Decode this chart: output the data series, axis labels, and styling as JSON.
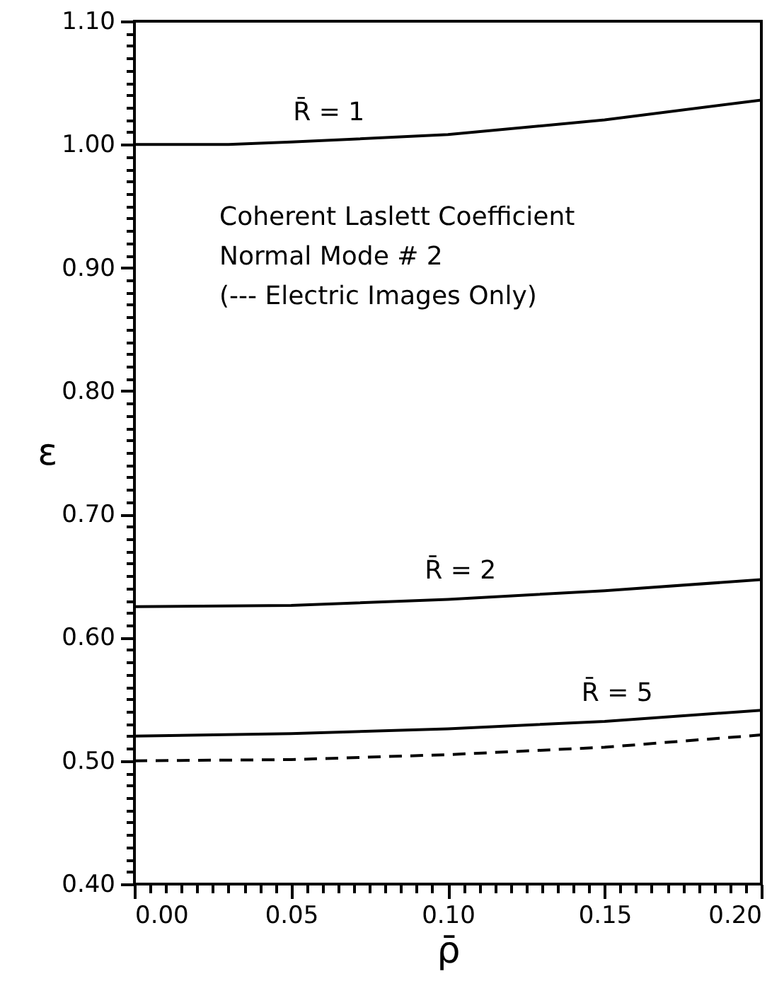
{
  "chart_data": {
    "type": "line",
    "xlabel": "ρ̄",
    "ylabel": "ε",
    "series": [
      {
        "color": "#000000",
        "line_style": "solid",
        "x": [
          0,
          0.03,
          0.05,
          0.1,
          0.15,
          0.2
        ],
        "values": [
          1.0,
          1.0,
          1.002,
          1.008,
          1.02,
          1.036
        ],
        "name": "R̄ = 1"
      },
      {
        "color": "#000000",
        "line_style": "solid",
        "x": [
          0,
          0.05,
          0.1,
          0.15,
          0.2
        ],
        "values": [
          0.625,
          0.626,
          0.631,
          0.638,
          0.647
        ],
        "name": "R̄ = 2"
      },
      {
        "color": "#000000",
        "line_style": "solid",
        "x": [
          0,
          0.05,
          0.1,
          0.15,
          0.2
        ],
        "values": [
          0.52,
          0.522,
          0.526,
          0.532,
          0.541
        ],
        "name": "R̄ = 5"
      },
      {
        "color": "#000000",
        "line_style": "dashed",
        "x": [
          0,
          0.05,
          0.1,
          0.15,
          0.2
        ],
        "values": [
          0.5,
          0.501,
          0.505,
          0.511,
          0.521
        ]
      }
    ],
    "annotations": [
      "Coherent Laslett Coefficient\nNormal Mode # 2\n(--- Electric Images Only)"
    ],
    "xlim": [
      0,
      0.2
    ],
    "ylim": [
      0.4,
      1.1
    ],
    "xticks": [
      {
        "value": 0,
        "label": "0.00"
      },
      {
        "value": 0.005,
        "label": null
      },
      {
        "value": 0.01,
        "label": null
      },
      {
        "value": 0.015,
        "label": null
      },
      {
        "value": 0.02,
        "label": null
      },
      {
        "value": 0.025,
        "label": null
      },
      {
        "value": 0.03,
        "label": null
      },
      {
        "value": 0.035,
        "label": null
      },
      {
        "value": 0.04,
        "label": null
      },
      {
        "value": 0.045,
        "label": null
      },
      {
        "value": 0.05,
        "label": "0.05"
      },
      {
        "value": 0.055,
        "label": null
      },
      {
        "value": 0.06,
        "label": null
      },
      {
        "value": 0.065,
        "label": null
      },
      {
        "value": 0.07,
        "label": null
      },
      {
        "value": 0.075,
        "label": null
      },
      {
        "value": 0.08,
        "label": null
      },
      {
        "value": 0.085,
        "label": null
      },
      {
        "value": 0.09,
        "label": null
      },
      {
        "value": 0.095,
        "label": null
      },
      {
        "value": 0.1,
        "label": "0.10"
      },
      {
        "value": 0.105,
        "label": null
      },
      {
        "value": 0.11,
        "label": null
      },
      {
        "value": 0.115,
        "label": null
      },
      {
        "value": 0.12,
        "label": null
      },
      {
        "value": 0.125,
        "label": null
      },
      {
        "value": 0.13,
        "label": null
      },
      {
        "value": 0.135,
        "label": null
      },
      {
        "value": 0.14,
        "label": null
      },
      {
        "value": 0.145,
        "label": null
      },
      {
        "value": 0.15,
        "label": "0.15"
      },
      {
        "value": 0.155,
        "label": null
      },
      {
        "value": 0.16,
        "label": null
      },
      {
        "value": 0.165,
        "label": null
      },
      {
        "value": 0.17,
        "label": null
      },
      {
        "value": 0.175,
        "label": null
      },
      {
        "value": 0.18,
        "label": null
      },
      {
        "value": 0.185,
        "label": null
      },
      {
        "value": 0.19,
        "label": null
      },
      {
        "value": 0.195,
        "label": null
      },
      {
        "value": 0.2,
        "label": "0.20"
      }
    ],
    "yticks": [
      {
        "value": 0.4,
        "label": "0.40"
      },
      {
        "value": 0.41,
        "label": null
      },
      {
        "value": 0.42,
        "label": null
      },
      {
        "value": 0.43,
        "label": null
      },
      {
        "value": 0.44,
        "label": null
      },
      {
        "value": 0.45,
        "label": null
      },
      {
        "value": 0.46,
        "label": null
      },
      {
        "value": 0.47,
        "label": null
      },
      {
        "value": 0.48,
        "label": null
      },
      {
        "value": 0.49,
        "label": null
      },
      {
        "value": 0.5,
        "label": "0.50"
      },
      {
        "value": 0.51,
        "label": null
      },
      {
        "value": 0.52,
        "label": null
      },
      {
        "value": 0.53,
        "label": null
      },
      {
        "value": 0.54,
        "label": null
      },
      {
        "value": 0.55,
        "label": null
      },
      {
        "value": 0.56,
        "label": null
      },
      {
        "value": 0.57,
        "label": null
      },
      {
        "value": 0.58,
        "label": null
      },
      {
        "value": 0.59,
        "label": null
      },
      {
        "value": 0.6,
        "label": "0.60"
      },
      {
        "value": 0.61,
        "label": null
      },
      {
        "value": 0.62,
        "label": null
      },
      {
        "value": 0.63,
        "label": null
      },
      {
        "value": 0.64,
        "label": null
      },
      {
        "value": 0.65,
        "label": null
      },
      {
        "value": 0.66,
        "label": null
      },
      {
        "value": 0.67,
        "label": null
      },
      {
        "value": 0.68,
        "label": null
      },
      {
        "value": 0.69,
        "label": null
      },
      {
        "value": 0.7,
        "label": "0.70"
      },
      {
        "value": 0.71,
        "label": null
      },
      {
        "value": 0.72,
        "label": null
      },
      {
        "value": 0.73,
        "label": null
      },
      {
        "value": 0.74,
        "label": null
      },
      {
        "value": 0.75,
        "label": null
      },
      {
        "value": 0.76,
        "label": null
      },
      {
        "value": 0.77,
        "label": null
      },
      {
        "value": 0.78,
        "label": null
      },
      {
        "value": 0.79,
        "label": null
      },
      {
        "value": 0.8,
        "label": "0.80"
      },
      {
        "value": 0.81,
        "label": null
      },
      {
        "value": 0.82,
        "label": null
      },
      {
        "value": 0.83,
        "label": null
      },
      {
        "value": 0.84,
        "label": null
      },
      {
        "value": 0.85,
        "label": null
      },
      {
        "value": 0.86,
        "label": null
      },
      {
        "value": 0.87,
        "label": null
      },
      {
        "value": 0.88,
        "label": null
      },
      {
        "value": 0.89,
        "label": null
      },
      {
        "value": 0.9,
        "label": "0.90"
      },
      {
        "value": 0.91,
        "label": null
      },
      {
        "value": 0.92,
        "label": null
      },
      {
        "value": 0.93,
        "label": null
      },
      {
        "value": 0.94,
        "label": null
      },
      {
        "value": 0.95,
        "label": null
      },
      {
        "value": 0.96,
        "label": null
      },
      {
        "value": 0.97,
        "label": null
      },
      {
        "value": 0.98,
        "label": null
      },
      {
        "value": 0.99,
        "label": null
      },
      {
        "value": 1.0,
        "label": "1.00"
      },
      {
        "value": 1.01,
        "label": null
      },
      {
        "value": 1.02,
        "label": null
      },
      {
        "value": 1.03,
        "label": null
      },
      {
        "value": 1.04,
        "label": null
      },
      {
        "value": 1.05,
        "label": null
      },
      {
        "value": 1.06,
        "label": null
      },
      {
        "value": 1.07,
        "label": null
      },
      {
        "value": 1.08,
        "label": null
      },
      {
        "value": 1.09,
        "label": null
      },
      {
        "value": 1.1,
        "label": "1.10"
      }
    ],
    "grid": false
  }
}
